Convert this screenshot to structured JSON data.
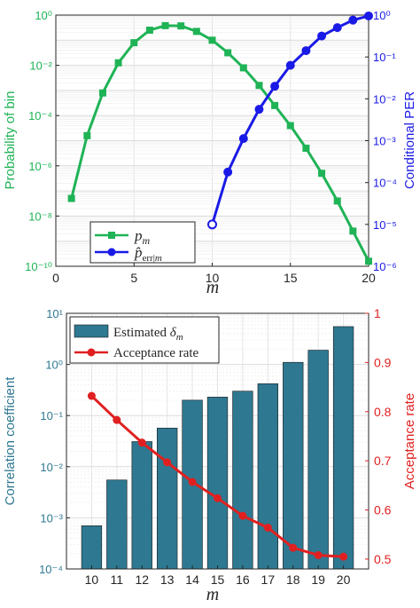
{
  "chart_data": [
    {
      "type": "line",
      "xlabel": "m",
      "ylabel_left": "Probability of bin",
      "ylabel_right": "Conditional PER",
      "xlim": [
        0,
        20
      ],
      "xticks": [
        0,
        5,
        10,
        15,
        20
      ],
      "yscale_left": "log",
      "ylim_left_exp": [
        -10,
        0
      ],
      "yticks_left": [
        "10⁰",
        "10⁻²",
        "10⁻⁴",
        "10⁻⁶",
        "10⁻⁸",
        "10⁻¹⁰"
      ],
      "yscale_right": "log",
      "ylim_right_exp": [
        -6,
        0
      ],
      "yticks_right": [
        "10⁰",
        "10⁻¹",
        "10⁻²",
        "10⁻³",
        "10⁻⁴",
        "10⁻⁵",
        "10⁻⁶"
      ],
      "grid": true,
      "legend": "bottom-left",
      "series": [
        {
          "name": "p_m",
          "axis": "left",
          "color": "#1fb356",
          "marker": "square",
          "x": [
            1,
            2,
            3,
            4,
            5,
            6,
            7,
            8,
            9,
            10,
            11,
            12,
            13,
            14,
            15,
            16,
            17,
            18,
            19,
            20
          ],
          "log10_y": [
            -7.3,
            -4.8,
            -3.1,
            -1.9,
            -1.1,
            -0.6,
            -0.42,
            -0.43,
            -0.65,
            -1.0,
            -1.5,
            -2.1,
            -2.8,
            -3.6,
            -4.4,
            -5.3,
            -6.3,
            -7.4,
            -8.6,
            -9.8
          ]
        },
        {
          "name": "p̂_err|m",
          "axis": "right",
          "color": "#1a1ae6",
          "marker": "circle",
          "x": [
            10,
            11,
            12,
            13,
            14,
            15,
            16,
            17,
            18,
            19,
            20
          ],
          "log10_y": [
            -5.0,
            -3.75,
            -2.95,
            -2.25,
            -1.7,
            -1.2,
            -0.85,
            -0.5,
            -0.3,
            -0.12,
            -0.02
          ]
        }
      ]
    },
    {
      "type": "bar",
      "xlabel": "m",
      "ylabel_left": "Correlation coefficient",
      "ylabel_right": "Acceptance rate",
      "categories": [
        "10",
        "11",
        "12",
        "13",
        "14",
        "15",
        "16",
        "17",
        "18",
        "19",
        "20"
      ],
      "yscale_left": "log",
      "ylim_left_exp": [
        -4,
        1
      ],
      "yticks_left": [
        "10¹",
        "10⁰",
        "10⁻¹",
        "10⁻²",
        "10⁻³",
        "10⁻⁴"
      ],
      "ylim_right": [
        0.48,
        1.0
      ],
      "yticks_right": [
        "1",
        "0.9",
        "0.8",
        "0.7",
        "0.6",
        "0.5"
      ],
      "grid": true,
      "legend": "top-left",
      "series": [
        {
          "name": "Estimated δ_m",
          "axis": "left",
          "color": "#2e7891",
          "values": [
            0.0007,
            0.0055,
            0.031,
            0.057,
            0.2,
            0.23,
            0.3,
            0.42,
            1.1,
            1.9,
            5.5
          ]
        },
        {
          "name": "Acceptance rate",
          "axis": "right",
          "color": "#e02020",
          "values": [
            0.832,
            0.783,
            0.737,
            0.697,
            0.657,
            0.624,
            0.588,
            0.564,
            0.523,
            0.508,
            0.505
          ]
        }
      ]
    }
  ]
}
